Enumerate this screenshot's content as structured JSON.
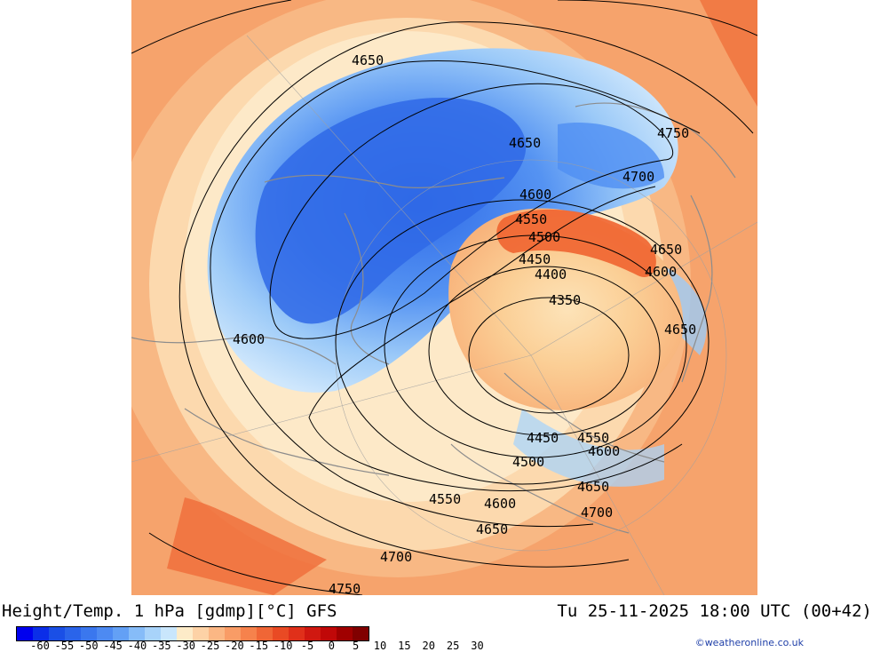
{
  "title": "Height/Temp. 1 hPa [gdmp][°C] GFS",
  "valid_time": "Tu 25-11-2025 18:00 UTC (00+42)",
  "credit": "©weatheronline.co.uk",
  "contour_labels": [
    "4750",
    "4700",
    "4650",
    "4600",
    "4550",
    "4500",
    "4450",
    "4400",
    "4350"
  ],
  "contour_labels_drawn": [
    {
      "text": "4650"
    },
    {
      "text": "4650"
    },
    {
      "text": "4750"
    },
    {
      "text": "4700"
    },
    {
      "text": "4600"
    },
    {
      "text": "4550"
    },
    {
      "text": "4500"
    },
    {
      "text": "4450"
    },
    {
      "text": "4400"
    },
    {
      "text": "4350"
    },
    {
      "text": "4650"
    },
    {
      "text": "4600"
    },
    {
      "text": "4600"
    },
    {
      "text": "4650"
    },
    {
      "text": "4450"
    },
    {
      "text": "4550"
    },
    {
      "text": "4600"
    },
    {
      "text": "4500"
    },
    {
      "text": "4650"
    },
    {
      "text": "4550"
    },
    {
      "text": "4600"
    },
    {
      "text": "4700"
    },
    {
      "text": "4650"
    },
    {
      "text": "4700"
    },
    {
      "text": "4750"
    }
  ],
  "scale": {
    "labels": [
      "-60",
      "-55",
      "-50",
      "-45",
      "-40",
      "-35",
      "-30",
      "-25",
      "-20",
      "-15",
      "-10",
      "-5",
      "0",
      "5",
      "10",
      "15",
      "20",
      "25",
      "30"
    ],
    "colors": [
      "#0000ee",
      "#0b2ee8",
      "#1a4fe6",
      "#2a64ea",
      "#3a77ee",
      "#4d8af2",
      "#63a0f5",
      "#86bcf8",
      "#a8d3fa",
      "#c9e6fc",
      "#fdebc8",
      "#fdd2a6",
      "#fbb784",
      "#f99c66",
      "#f6824c",
      "#f06636",
      "#e94a24",
      "#e0301a",
      "#d01810",
      "#c00808",
      "#a00000",
      "#800000"
    ]
  },
  "colors": {
    "frame_bg": "#f7a06a",
    "cold_core": "#3a7af0",
    "warm_core": "#ee5a2a",
    "coast": "#909090",
    "contour": "#000000",
    "credit": "#1f3fa8"
  }
}
